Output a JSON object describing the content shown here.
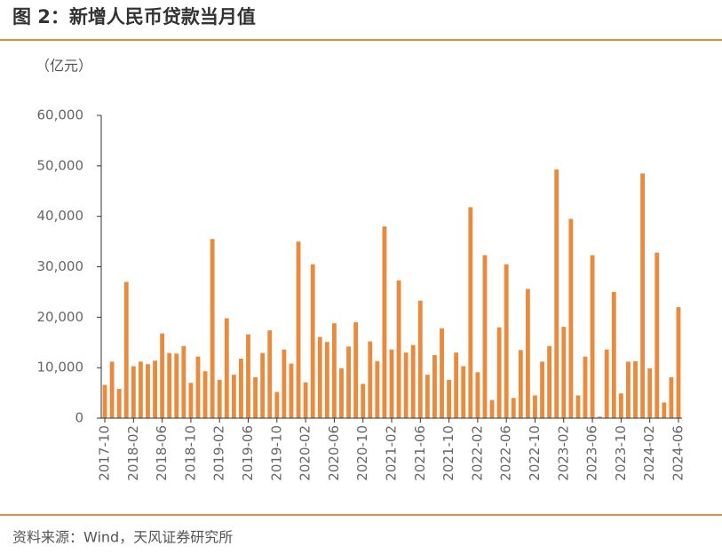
{
  "chart_data": {
    "type": "bar",
    "title": "图 2：新增人民币贷款当月值",
    "y_label": "（亿元）",
    "source": "资料来源：Wind，天风证券研究所",
    "color": "#ea8a3c",
    "categories": [
      "2017-10",
      null,
      null,
      null,
      "2018-02",
      null,
      null,
      null,
      "2018-06",
      null,
      null,
      null,
      "2018-10",
      null,
      null,
      null,
      "2019-02",
      null,
      null,
      null,
      "2019-06",
      null,
      null,
      null,
      "2019-10",
      null,
      null,
      null,
      "2020-02",
      null,
      null,
      null,
      "2020-06",
      null,
      null,
      null,
      "2020-10",
      null,
      null,
      null,
      "2021-02",
      null,
      null,
      null,
      "2021-06",
      null,
      null,
      null,
      "2021-10",
      null,
      null,
      null,
      "2022-02",
      null,
      null,
      null,
      "2022-06",
      null,
      null,
      null,
      "2022-10",
      null,
      null,
      null,
      "2023-02",
      null,
      null,
      null,
      "2023-06",
      null,
      null,
      null,
      "2023-10",
      null,
      null,
      null,
      "2024-02",
      null,
      null,
      null,
      "2024-06"
    ],
    "values": [
      6600,
      11200,
      5800,
      27000,
      10300,
      11200,
      10700,
      11400,
      16800,
      12900,
      12800,
      14300,
      7000,
      12200,
      9300,
      35500,
      7600,
      19800,
      8600,
      11800,
      16600,
      8100,
      12900,
      17400,
      5200,
      13600,
      10800,
      35000,
      7100,
      30500,
      16100,
      15100,
      18800,
      9900,
      14200,
      19000,
      6800,
      15200,
      11300,
      38000,
      13600,
      27300,
      13000,
      14500,
      23300,
      8600,
      12500,
      17800,
      7600,
      13000,
      10300,
      41800,
      9100,
      32300,
      3600,
      18000,
      30500,
      4000,
      13500,
      25600,
      4500,
      11200,
      14300,
      49300,
      18100,
      39500,
      4500,
      12200,
      32300,
      300,
      13600,
      25000,
      4900,
      11200,
      11300,
      48500,
      9900,
      32800,
      3100,
      8100,
      22000
    ],
    "ylim": [
      0,
      60000
    ],
    "yticks": [
      0,
      {
        "value": 10000,
        "label": "10,000"
      },
      {
        "value": 20000,
        "label": "20,000"
      },
      {
        "value": 30000,
        "label": "30,000"
      },
      {
        "value": 40000,
        "label": "40,000"
      },
      {
        "value": 50000,
        "label": "50,000"
      },
      {
        "value": 60000,
        "label": "60,000"
      }
    ]
  }
}
